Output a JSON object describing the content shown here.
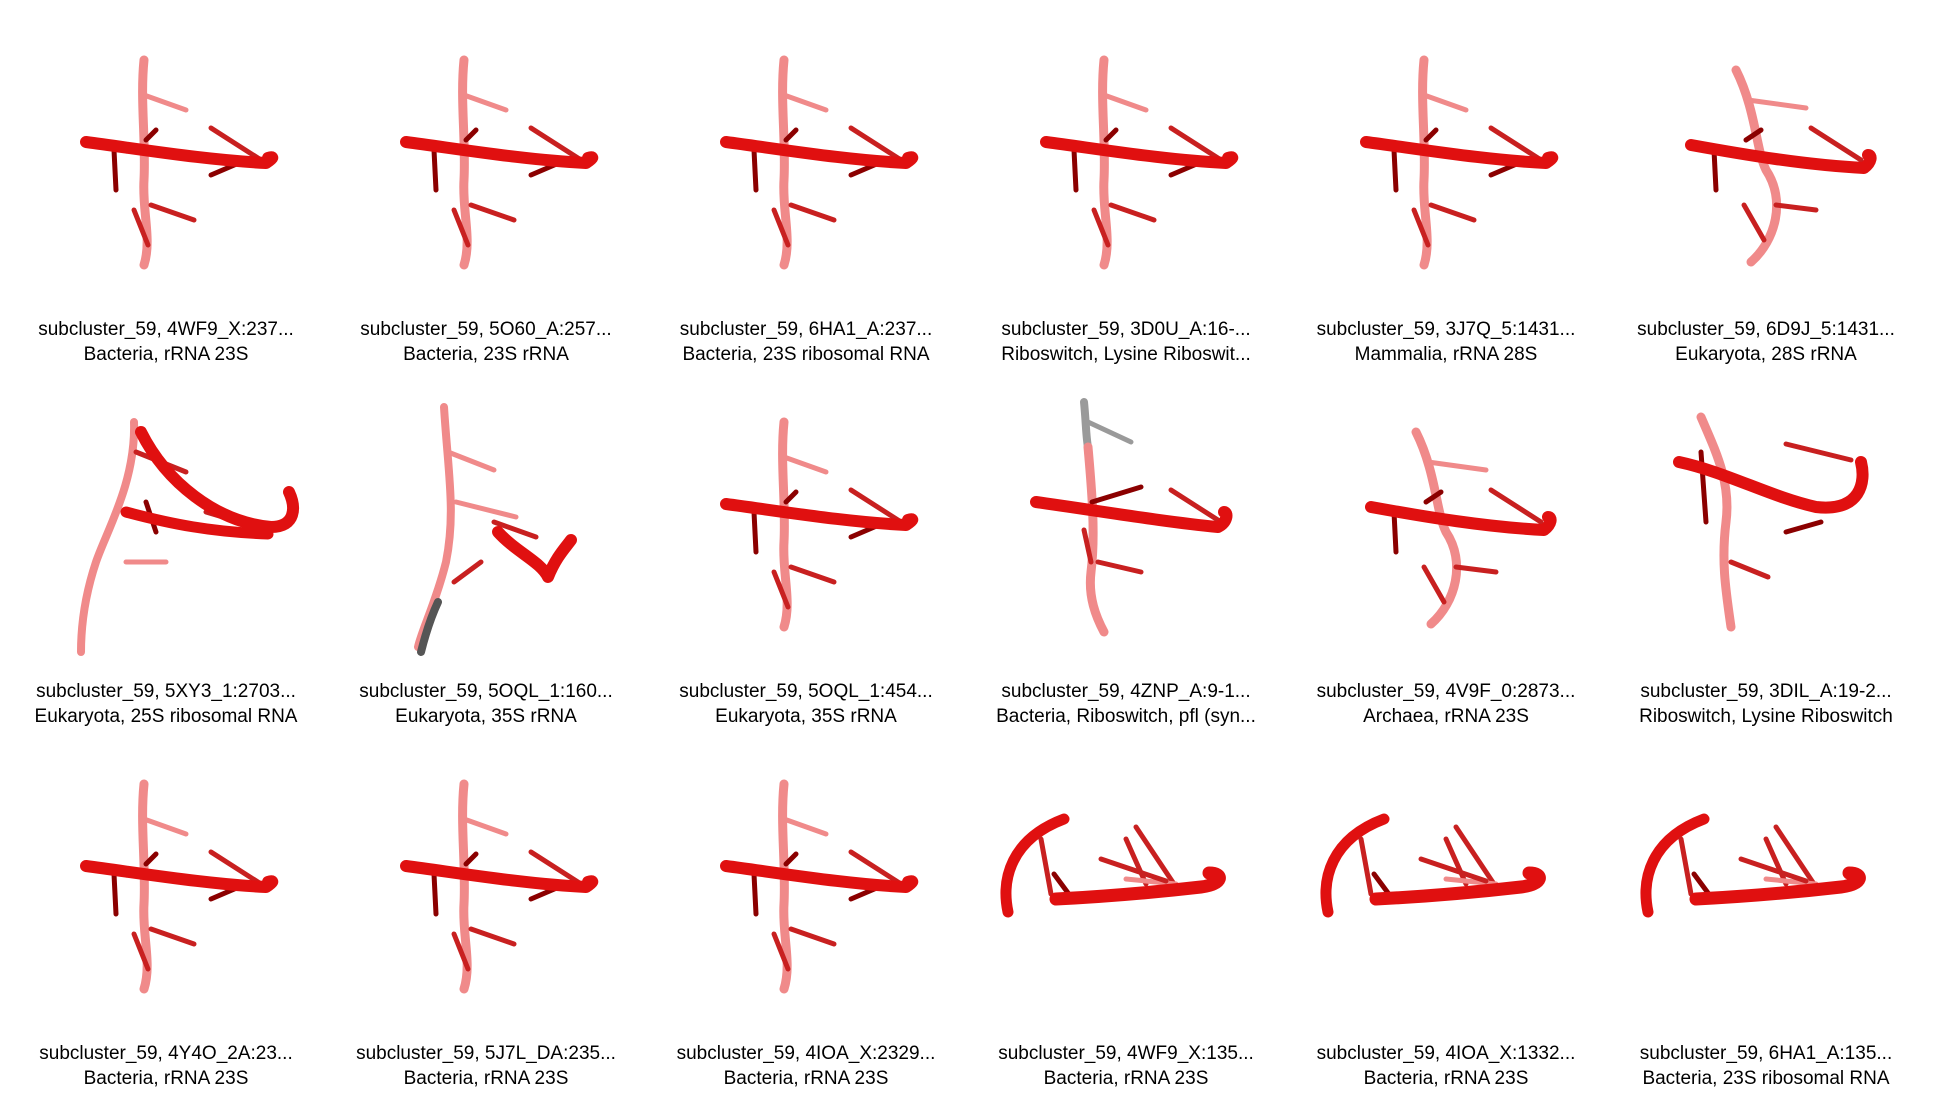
{
  "panels": [
    {
      "label": "subcluster_59, 4WF9_X:237...",
      "desc": "Bacteria, rRNA 23S",
      "shape": "cross"
    },
    {
      "label": "subcluster_59, 5O60_A:257...",
      "desc": "Bacteria, 23S rRNA",
      "shape": "cross"
    },
    {
      "label": "subcluster_59, 6HA1_A:237...",
      "desc": "Bacteria, 23S ribosomal RNA",
      "shape": "cross"
    },
    {
      "label": "subcluster_59, 3D0U_A:16-...",
      "desc": "Riboswitch, Lysine Riboswit...",
      "shape": "cross"
    },
    {
      "label": "subcluster_59, 3J7Q_5:1431...",
      "desc": "Mammalia, rRNA 28S",
      "shape": "cross"
    },
    {
      "label": "subcluster_59, 6D9J_5:1431...",
      "desc": "Eukaryota, 28S rRNA",
      "shape": "cross-tilt"
    },
    {
      "label": "subcluster_59, 5XY3_1:2703...",
      "desc": "Eukaryota, 25S ribosomal RNA",
      "shape": "loop"
    },
    {
      "label": "subcluster_59, 5OQL_1:160...",
      "desc": "Eukaryota, 35S rRNA",
      "shape": "grey-tail"
    },
    {
      "label": "subcluster_59, 5OQL_1:454...",
      "desc": "Eukaryota, 35S rRNA",
      "shape": "cross"
    },
    {
      "label": "subcluster_59, 4ZNP_A:9-1...",
      "desc": "Bacteria, Riboswitch, pfl (syn...",
      "shape": "grey-top"
    },
    {
      "label": "subcluster_59, 4V9F_0:2873...",
      "desc": "Archaea, rRNA 23S",
      "shape": "cross-tilt"
    },
    {
      "label": "subcluster_59, 3DIL_A:19-2...",
      "desc": "Riboswitch, Lysine Riboswitch",
      "shape": "hook"
    },
    {
      "label": "subcluster_59, 4Y4O_2A:23...",
      "desc": "Bacteria, rRNA 23S",
      "shape": "cross"
    },
    {
      "label": "subcluster_59, 5J7L_DA:235...",
      "desc": "Bacteria, rRNA 23S",
      "shape": "cross"
    },
    {
      "label": "subcluster_59, 4IOA_X:2329...",
      "desc": "Bacteria, rRNA 23S",
      "shape": "cross"
    },
    {
      "label": "subcluster_59, 4WF9_X:135...",
      "desc": "Bacteria, rRNA 23S",
      "shape": "arch"
    },
    {
      "label": "subcluster_59, 4IOA_X:1332...",
      "desc": "Bacteria, rRNA 23S",
      "shape": "arch"
    },
    {
      "label": "subcluster_59, 6HA1_A:135...",
      "desc": "Bacteria, 23S ribosomal RNA",
      "shape": "arch"
    }
  ],
  "colors": {
    "strand": "#e01010",
    "strand_light": "#f08a8a",
    "stick_dark": "#8b0000",
    "stick_mid": "#c82020",
    "grey": "#9a9a9a",
    "grey_dark": "#555555"
  }
}
